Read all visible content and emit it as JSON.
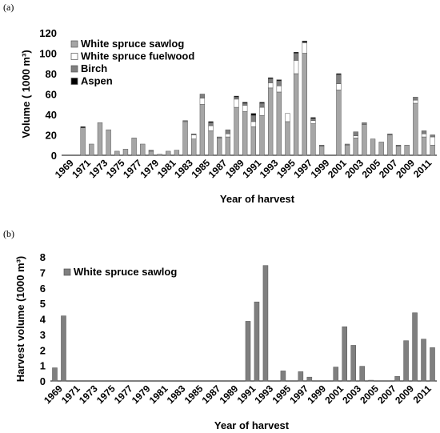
{
  "figure": {
    "panels": [
      "(a)",
      "(b)"
    ]
  },
  "chart_data": [
    {
      "type": "bar",
      "stacked": true,
      "ylabel": "Volume ( 1000 m³)",
      "xlabel": "Year of harvest",
      "ylim": [
        0,
        120
      ],
      "yticks": [
        0,
        20,
        40,
        60,
        80,
        100,
        120
      ],
      "legend_position": "top-left",
      "colors": {
        "White spruce sawlog": "#a6a6a6",
        "White spruce fuelwood": "#ffffff",
        "Birch": "#7f7f7f",
        "Aspen": "#000000"
      },
      "categories": [
        1969,
        1970,
        1971,
        1972,
        1973,
        1974,
        1975,
        1976,
        1977,
        1978,
        1979,
        1980,
        1981,
        1982,
        1983,
        1984,
        1985,
        1986,
        1987,
        1988,
        1989,
        1990,
        1991,
        1992,
        1993,
        1994,
        1995,
        1996,
        1997,
        1998,
        1999,
        2000,
        2001,
        2002,
        2003,
        2004,
        2005,
        2006,
        2007,
        2008,
        2009,
        2010,
        2011,
        2012
      ],
      "tick_labels": [
        "1969",
        "1971",
        "1973",
        "1975",
        "1977",
        "1979",
        "1981",
        "1983",
        "1985",
        "1987",
        "1989",
        "1991",
        "1993",
        "1995",
        "1997",
        "1999",
        "2001",
        "2003",
        "2005",
        "2007",
        "2009",
        "2011"
      ],
      "series": [
        {
          "name": "White spruce sawlog",
          "values": [
            0,
            0,
            27,
            11,
            32,
            25,
            4,
            6,
            17,
            11,
            4,
            1,
            4,
            5,
            33,
            16,
            50,
            24,
            17,
            18,
            47,
            43,
            28,
            39,
            66,
            62,
            33,
            80,
            100,
            31,
            9,
            0,
            64,
            10,
            17,
            30,
            16,
            13,
            20,
            9,
            10,
            51,
            18,
            10
          ]
        },
        {
          "name": "White spruce fuelwood",
          "values": [
            0,
            0,
            0,
            0,
            0,
            0,
            0,
            0,
            0,
            0,
            0,
            0,
            0,
            0,
            0,
            4,
            6,
            5,
            0,
            3,
            8,
            6,
            5,
            8,
            5,
            6,
            8,
            13,
            10,
            3,
            0,
            0,
            6,
            0,
            2,
            0,
            0,
            0,
            0,
            0,
            0,
            3,
            3,
            8
          ]
        },
        {
          "name": "Birch",
          "values": [
            0,
            0,
            0,
            0,
            0,
            0,
            0,
            0,
            0,
            0,
            1,
            0,
            0,
            0,
            1,
            1,
            4,
            3,
            1,
            4,
            2,
            2,
            6,
            4,
            4,
            5,
            0,
            7,
            1,
            2,
            1,
            0,
            9,
            1,
            4,
            2,
            0,
            0,
            1,
            1,
            0,
            3,
            3,
            2
          ]
        },
        {
          "name": "Aspen",
          "values": [
            0,
            0,
            1,
            0,
            0,
            0,
            0,
            0,
            0,
            0,
            0,
            0,
            0,
            0,
            0,
            0,
            0,
            1,
            0,
            0,
            1,
            1,
            2,
            1,
            1,
            1,
            0,
            1,
            1,
            1,
            0,
            0,
            1,
            0,
            0,
            0,
            0,
            0,
            0,
            0,
            0,
            0,
            0,
            0
          ]
        }
      ]
    },
    {
      "type": "bar",
      "ylabel": "Harvest volume (1000 m³)",
      "xlabel": "Year of harvest",
      "ylim": [
        0,
        8
      ],
      "yticks": [
        0,
        1,
        2,
        3,
        4,
        5,
        6,
        7,
        8
      ],
      "legend_position": "top-left",
      "colors": {
        "White spruce sawlog": "#7f7f7f"
      },
      "categories": [
        1969,
        1970,
        1971,
        1972,
        1973,
        1974,
        1975,
        1976,
        1977,
        1978,
        1979,
        1980,
        1981,
        1982,
        1983,
        1984,
        1985,
        1986,
        1987,
        1988,
        1989,
        1990,
        1991,
        1992,
        1993,
        1994,
        1995,
        1996,
        1997,
        1998,
        1999,
        2000,
        2001,
        2002,
        2003,
        2004,
        2005,
        2006,
        2007,
        2008,
        2009,
        2010,
        2011,
        2012
      ],
      "tick_labels": [
        "1969",
        "1971",
        "1973",
        "1975",
        "1977",
        "1979",
        "1981",
        "1983",
        "1985",
        "1987",
        "1989",
        "1991",
        "1993",
        "1995",
        "1997",
        "1999",
        "2001",
        "2003",
        "2005",
        "2007",
        "2009",
        "2011"
      ],
      "series": [
        {
          "name": "White spruce sawlog",
          "values": [
            0.85,
            4.2,
            0,
            0,
            0,
            0,
            0,
            0,
            0,
            0,
            0,
            0,
            0,
            0,
            0,
            0,
            0,
            0,
            0,
            0,
            0,
            0,
            3.85,
            5.1,
            7.45,
            0,
            0.65,
            0,
            0.6,
            0.25,
            0,
            0,
            0.9,
            3.5,
            2.3,
            0.95,
            0.05,
            0,
            0,
            0.3,
            2.6,
            4.4,
            2.7,
            2.15
          ]
        }
      ]
    }
  ]
}
